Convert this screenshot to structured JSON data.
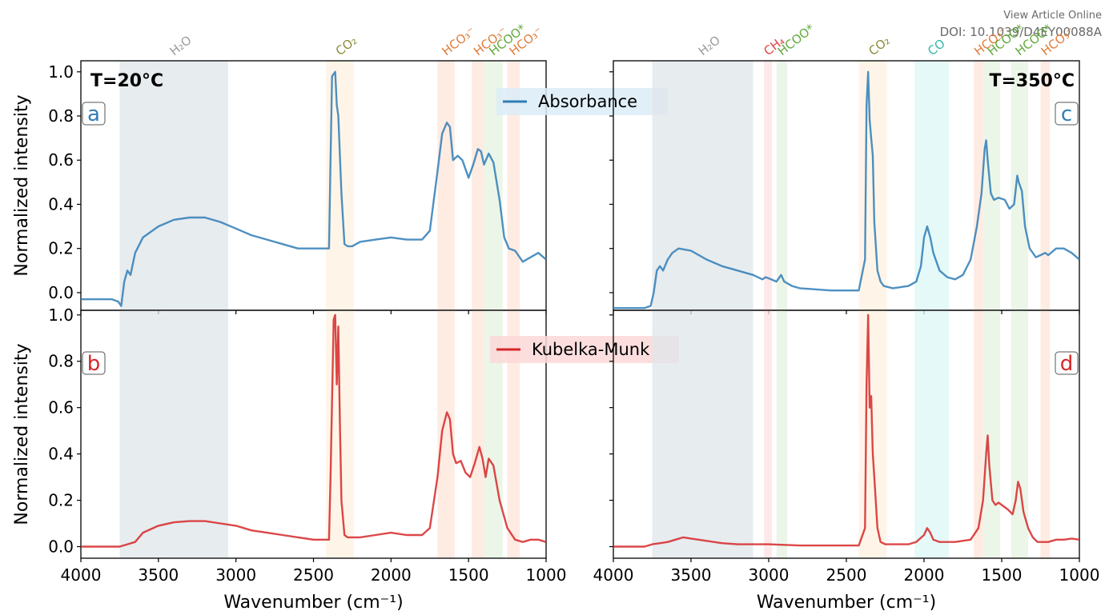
{
  "header": {
    "view_article": "View Article Online",
    "doi": "DOI: 10.1039/D4EY00088A"
  },
  "chart_data": [
    {
      "type": "line",
      "panel": "a",
      "temperature_label": "T=20°C",
      "legend": "Absorbance",
      "color": "#2f7db6",
      "xlabel": "",
      "ylabel": "Normalized intensity",
      "xlim": [
        4000,
        1000
      ],
      "ylim": [
        -0.08,
        1.05
      ],
      "yticks": [
        "0.0",
        "0.2",
        "0.4",
        "0.6",
        "0.8",
        "1.0"
      ],
      "bands": [
        {
          "label": "H₂O",
          "from": 3750,
          "to": 3050,
          "color": "#dfe6ea",
          "label_color": "#9a9a9a"
        },
        {
          "label": "CO₂",
          "from": 2420,
          "to": 2240,
          "color": "#fdf2e0",
          "label_color": "#8a8a3a"
        },
        {
          "label": "HCO₃⁻",
          "from": 1700,
          "to": 1590,
          "color": "#fde4d8",
          "label_color": "#e07b39"
        },
        {
          "label": "HCO₃⁻",
          "from": 1480,
          "to": 1400,
          "color": "#fde4d8",
          "label_color": "#e07b39"
        },
        {
          "label": "HCOO*",
          "from": 1400,
          "to": 1280,
          "color": "#e6f3e0",
          "label_color": "#5fa83a"
        },
        {
          "label": "HCO₃⁻",
          "from": 1250,
          "to": 1170,
          "color": "#fde4d8",
          "label_color": "#e07b39"
        }
      ],
      "x": [
        4000,
        3800,
        3760,
        3740,
        3720,
        3700,
        3680,
        3650,
        3600,
        3500,
        3400,
        3300,
        3200,
        3100,
        3000,
        2900,
        2800,
        2700,
        2600,
        2500,
        2400,
        2390,
        2380,
        2360,
        2350,
        2340,
        2320,
        2300,
        2280,
        2250,
        2200,
        2100,
        2000,
        1900,
        1800,
        1750,
        1700,
        1670,
        1640,
        1620,
        1600,
        1570,
        1540,
        1500,
        1470,
        1440,
        1420,
        1400,
        1370,
        1340,
        1300,
        1270,
        1240,
        1200,
        1150,
        1100,
        1050,
        1000
      ],
      "y": [
        -0.03,
        -0.03,
        -0.04,
        -0.06,
        0.05,
        0.1,
        0.08,
        0.18,
        0.25,
        0.3,
        0.33,
        0.34,
        0.34,
        0.32,
        0.29,
        0.26,
        0.24,
        0.22,
        0.2,
        0.2,
        0.2,
        0.6,
        0.98,
        1.0,
        0.85,
        0.8,
        0.45,
        0.22,
        0.21,
        0.21,
        0.23,
        0.24,
        0.25,
        0.24,
        0.24,
        0.28,
        0.55,
        0.72,
        0.77,
        0.75,
        0.6,
        0.62,
        0.6,
        0.52,
        0.58,
        0.65,
        0.64,
        0.58,
        0.63,
        0.59,
        0.42,
        0.25,
        0.2,
        0.19,
        0.14,
        0.16,
        0.18,
        0.15
      ]
    },
    {
      "type": "line",
      "panel": "b",
      "legend": "Kubelka-Munk",
      "color": "#d62728",
      "xlabel": "Wavenumber (cm⁻¹)",
      "ylabel": "Normalized intensity",
      "xlim": [
        4000,
        1000
      ],
      "ylim": [
        -0.05,
        1.02
      ],
      "yticks": [
        "0.0",
        "0.2",
        "0.4",
        "0.6",
        "0.8",
        "1.0"
      ],
      "xticks": [
        "4000",
        "3500",
        "3000",
        "2500",
        "2000",
        "1500",
        "1000"
      ],
      "x": [
        4000,
        3800,
        3750,
        3700,
        3650,
        3600,
        3500,
        3400,
        3300,
        3200,
        3100,
        3000,
        2900,
        2800,
        2700,
        2600,
        2500,
        2400,
        2390,
        2370,
        2360,
        2350,
        2340,
        2330,
        2320,
        2300,
        2280,
        2250,
        2200,
        2100,
        2000,
        1900,
        1800,
        1750,
        1700,
        1670,
        1640,
        1620,
        1600,
        1580,
        1550,
        1520,
        1490,
        1460,
        1430,
        1410,
        1390,
        1370,
        1340,
        1300,
        1250,
        1200,
        1150,
        1100,
        1050,
        1000
      ],
      "y": [
        0.0,
        0.0,
        0.0,
        0.01,
        0.02,
        0.06,
        0.09,
        0.105,
        0.11,
        0.11,
        0.1,
        0.09,
        0.07,
        0.06,
        0.05,
        0.04,
        0.03,
        0.03,
        0.3,
        0.98,
        1.0,
        0.7,
        0.95,
        0.55,
        0.2,
        0.05,
        0.04,
        0.04,
        0.04,
        0.05,
        0.06,
        0.05,
        0.05,
        0.08,
        0.3,
        0.5,
        0.58,
        0.55,
        0.4,
        0.36,
        0.37,
        0.32,
        0.3,
        0.36,
        0.43,
        0.38,
        0.3,
        0.38,
        0.35,
        0.2,
        0.08,
        0.03,
        0.02,
        0.03,
        0.03,
        0.02
      ]
    },
    {
      "type": "line",
      "panel": "c",
      "temperature_label": "T=350°C",
      "color": "#2f7db6",
      "xlim": [
        4000,
        1000
      ],
      "ylim": [
        -0.08,
        1.05
      ],
      "bands": [
        {
          "label": "H₂O",
          "from": 3750,
          "to": 3100,
          "color": "#dfe6ea",
          "label_color": "#9a9a9a"
        },
        {
          "label": "CH₄",
          "from": 3030,
          "to": 2980,
          "color": "#fde0e0",
          "label_color": "#e04040"
        },
        {
          "label": "HCOO*",
          "from": 2950,
          "to": 2880,
          "color": "#e6f3e0",
          "label_color": "#5fa83a"
        },
        {
          "label": "CO₂",
          "from": 2420,
          "to": 2240,
          "color": "#fdf2e0",
          "label_color": "#8a8a3a"
        },
        {
          "label": "CO",
          "from": 2060,
          "to": 1840,
          "color": "#dcf7f5",
          "label_color": "#2fb8a8"
        },
        {
          "label": "HCO₃⁻",
          "from": 1680,
          "to": 1620,
          "color": "#fde4d8",
          "label_color": "#e07b39"
        },
        {
          "label": "HCOO*",
          "from": 1620,
          "to": 1510,
          "color": "#e6f3e0",
          "label_color": "#5fa83a"
        },
        {
          "label": "HCOO*",
          "from": 1440,
          "to": 1330,
          "color": "#e6f3e0",
          "label_color": "#5fa83a"
        },
        {
          "label": "HCO₃⁻",
          "from": 1250,
          "to": 1190,
          "color": "#fde4d8",
          "label_color": "#e07b39"
        }
      ],
      "x": [
        4000,
        3800,
        3760,
        3740,
        3720,
        3700,
        3680,
        3650,
        3620,
        3580,
        3500,
        3400,
        3300,
        3200,
        3100,
        3040,
        3020,
        3000,
        2950,
        2920,
        2900,
        2850,
        2800,
        2700,
        2600,
        2500,
        2420,
        2380,
        2370,
        2360,
        2350,
        2340,
        2330,
        2320,
        2300,
        2280,
        2260,
        2200,
        2100,
        2050,
        2020,
        2000,
        1980,
        1960,
        1940,
        1900,
        1850,
        1800,
        1750,
        1700,
        1660,
        1630,
        1610,
        1600,
        1590,
        1570,
        1550,
        1520,
        1480,
        1450,
        1420,
        1400,
        1390,
        1370,
        1350,
        1320,
        1280,
        1250,
        1220,
        1200,
        1150,
        1100,
        1050,
        1000
      ],
      "y": [
        -0.07,
        -0.07,
        -0.06,
        0.0,
        0.1,
        0.12,
        0.1,
        0.15,
        0.18,
        0.2,
        0.19,
        0.15,
        0.12,
        0.1,
        0.08,
        0.06,
        0.07,
        0.065,
        0.05,
        0.08,
        0.05,
        0.03,
        0.02,
        0.015,
        0.01,
        0.01,
        0.01,
        0.15,
        0.85,
        1.0,
        0.78,
        0.7,
        0.62,
        0.32,
        0.1,
        0.05,
        0.03,
        0.02,
        0.03,
        0.05,
        0.12,
        0.25,
        0.3,
        0.25,
        0.18,
        0.1,
        0.07,
        0.06,
        0.08,
        0.15,
        0.3,
        0.45,
        0.65,
        0.69,
        0.6,
        0.45,
        0.42,
        0.43,
        0.42,
        0.38,
        0.4,
        0.53,
        0.5,
        0.46,
        0.3,
        0.2,
        0.16,
        0.17,
        0.18,
        0.17,
        0.2,
        0.2,
        0.18,
        0.15
      ]
    },
    {
      "type": "line",
      "panel": "d",
      "color": "#d62728",
      "xlabel": "Wavenumber (cm⁻¹)",
      "xlim": [
        4000,
        1000
      ],
      "ylim": [
        -0.05,
        1.02
      ],
      "xticks": [
        "4000",
        "3500",
        "3000",
        "2500",
        "2000",
        "1500",
        "1000"
      ],
      "x": [
        4000,
        3800,
        3750,
        3700,
        3650,
        3600,
        3550,
        3500,
        3400,
        3300,
        3200,
        3000,
        2800,
        2600,
        2420,
        2380,
        2370,
        2360,
        2350,
        2340,
        2330,
        2320,
        2300,
        2280,
        2250,
        2200,
        2100,
        2050,
        2000,
        1980,
        1960,
        1940,
        1900,
        1800,
        1700,
        1650,
        1620,
        1600,
        1590,
        1580,
        1560,
        1540,
        1520,
        1500,
        1460,
        1430,
        1410,
        1395,
        1380,
        1360,
        1330,
        1300,
        1270,
        1250,
        1200,
        1150,
        1100,
        1050,
        1000
      ],
      "y": [
        0.0,
        0.0,
        0.01,
        0.015,
        0.02,
        0.03,
        0.04,
        0.035,
        0.025,
        0.015,
        0.01,
        0.01,
        0.005,
        0.005,
        0.005,
        0.08,
        0.7,
        1.0,
        0.6,
        0.65,
        0.4,
        0.3,
        0.08,
        0.02,
        0.01,
        0.01,
        0.01,
        0.02,
        0.05,
        0.08,
        0.06,
        0.03,
        0.02,
        0.02,
        0.03,
        0.08,
        0.2,
        0.4,
        0.48,
        0.35,
        0.2,
        0.18,
        0.19,
        0.18,
        0.16,
        0.14,
        0.2,
        0.28,
        0.25,
        0.15,
        0.08,
        0.04,
        0.02,
        0.02,
        0.02,
        0.03,
        0.03,
        0.035,
        0.03
      ]
    }
  ]
}
